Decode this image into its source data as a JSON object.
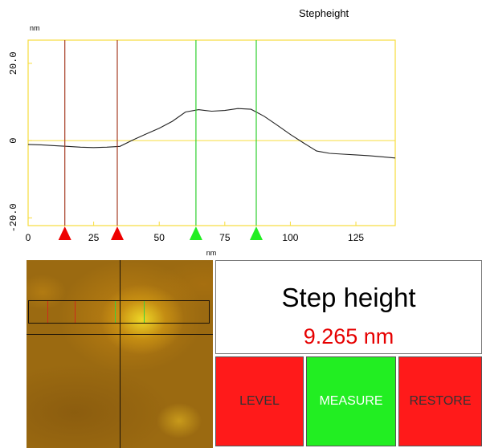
{
  "colors": {
    "axis_box": "#f7dc3c",
    "profile_line": "#222222",
    "red_cursor": "#a63a22",
    "green_cursor": "#2ecf2e",
    "red_marker": "#ee0000",
    "green_marker": "#22ee22",
    "value_text": "#e60000",
    "level_button": "#ff1a1a",
    "measure_button": "#22ee22",
    "restore_button": "#ff1a1a",
    "button_text": "#333333",
    "measure_text": "#ffffff"
  },
  "chart_data": {
    "type": "line",
    "title": "Stepheight",
    "ylabel": "nm",
    "xlabel": "nm",
    "xlim": [
      0,
      140
    ],
    "ylim": [
      -22,
      26
    ],
    "x_ticks": [
      0,
      25,
      50,
      75,
      100,
      125
    ],
    "x_tick_labels": [
      "0",
      "25",
      "50",
      "75",
      "100",
      "125"
    ],
    "y_ticks": [
      20,
      0,
      -20
    ],
    "y_tick_labels": [
      "20.0",
      "0",
      "-20.0"
    ],
    "reference_line": 0,
    "series": [
      {
        "x": [
          0,
          5,
          10,
          15,
          20,
          25,
          30,
          35,
          40,
          45,
          50,
          55,
          60,
          65,
          70,
          75,
          80,
          85,
          90,
          95,
          100,
          105,
          110,
          115,
          120,
          125,
          130,
          135,
          140
        ],
        "y": [
          -1.0,
          -1.1,
          -1.3,
          -1.5,
          -1.7,
          -1.8,
          -1.7,
          -1.5,
          0.2,
          1.7,
          3.2,
          5.0,
          7.4,
          8.0,
          7.6,
          7.8,
          8.3,
          8.1,
          6.3,
          4.0,
          1.6,
          -0.6,
          -2.7,
          -3.3,
          -3.5,
          -3.7,
          -3.9,
          -4.2,
          -4.5
        ]
      }
    ],
    "cursors": [
      {
        "x": 14,
        "color": "red"
      },
      {
        "x": 34,
        "color": "red"
      },
      {
        "x": 64,
        "color": "green"
      },
      {
        "x": 87,
        "color": "green"
      }
    ]
  },
  "result": {
    "title": "Step height",
    "value": "9.265 nm"
  },
  "buttons": {
    "level": "LEVEL",
    "measure": "MEASURE",
    "restore": "RESTORE"
  }
}
